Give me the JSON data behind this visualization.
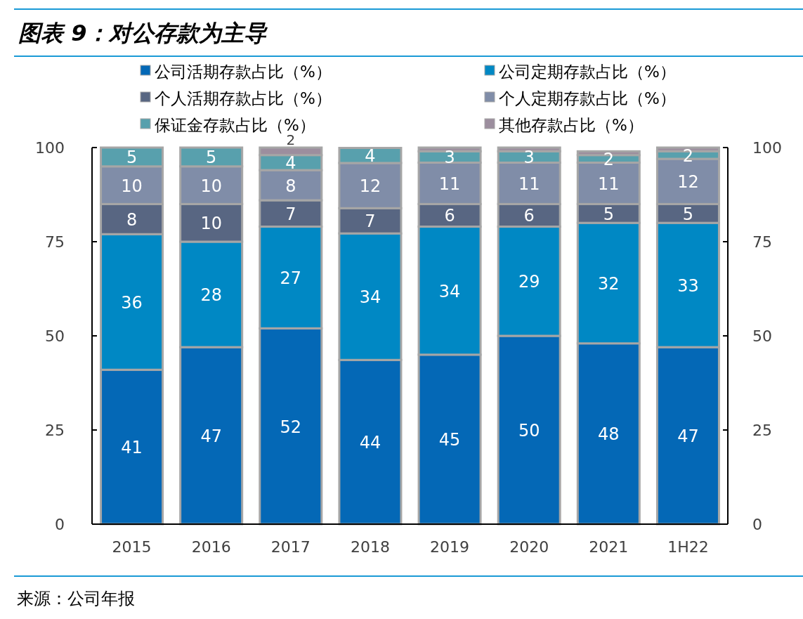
{
  "chart_data": {
    "type": "bar",
    "title": "图表 9：对公存款为主导",
    "stacked": true,
    "legend": "top",
    "grid": false,
    "categories": [
      "2015",
      "2016",
      "2017",
      "2018",
      "2019",
      "2020",
      "2021",
      "1H22"
    ],
    "series": [
      {
        "name": "公司活期存款占比（%）",
        "color": "#0468b6",
        "values": [
          41,
          47,
          52,
          43.6,
          45,
          50,
          48,
          47
        ],
        "value_labels": [
          "41",
          "47",
          "52",
          "44",
          "45",
          "50",
          "48",
          "47"
        ]
      },
      {
        "name": "公司定期存款占比（%）",
        "color": "#0088c4",
        "values": [
          36,
          28,
          27,
          33.6,
          34,
          29,
          32,
          33
        ],
        "value_labels": [
          "36",
          "28",
          "27",
          "34",
          "34",
          "29",
          "32",
          "33"
        ]
      },
      {
        "name": "个人活期存款占比（%）",
        "color": "#586682",
        "values": [
          8,
          10,
          7,
          6.7,
          6,
          6,
          5,
          5
        ],
        "value_labels": [
          "8",
          "10",
          "7",
          "7",
          "6",
          "6",
          "5",
          "5"
        ]
      },
      {
        "name": "个人定期存款占比（%）",
        "color": "#808da8",
        "values": [
          10,
          10,
          8,
          12,
          11,
          11,
          11,
          12
        ],
        "value_labels": [
          "10",
          "10",
          "8",
          "12",
          "11",
          "11",
          "11",
          "12"
        ]
      },
      {
        "name": "保证金存款占比（%）",
        "color": "#58a0ad",
        "values": [
          5,
          5,
          4,
          4,
          3,
          3,
          2,
          2
        ],
        "value_labels": [
          "5",
          "5",
          "4",
          "4",
          "3",
          "3",
          "2",
          "2"
        ]
      },
      {
        "name": "其他存款占比（%）",
        "color": "#9c8e9e",
        "values": [
          0,
          0,
          2,
          0,
          1,
          1,
          1,
          1
        ],
        "value_labels": [
          null,
          null,
          "2",
          null,
          null,
          null,
          null,
          null
        ]
      }
    ],
    "ylim": [
      0,
      100
    ],
    "yticks": [
      0,
      25,
      50,
      75,
      100
    ],
    "y2lim": [
      0,
      100
    ],
    "y2ticks": [
      0,
      25,
      50,
      75,
      100
    ],
    "annotations": [
      "来源：公司年报"
    ]
  }
}
